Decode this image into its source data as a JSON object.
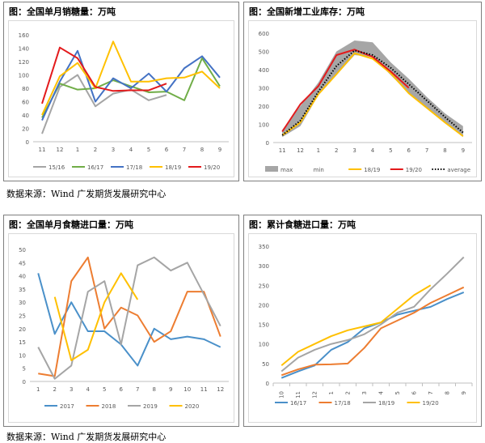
{
  "sources": {
    "top": "数据来源：Wind 广发期货发展研究中心",
    "bottom": "数据来源：Wind 广发期货发展研究中心"
  },
  "chart_data": [
    {
      "type": "line",
      "title": "图：全国单月销糖量：万吨",
      "categories": [
        "11",
        "12",
        "1",
        "2",
        "3",
        "4",
        "5",
        "6",
        "7",
        "8",
        "9"
      ],
      "ylim": [
        0,
        160
      ],
      "yticks": [
        0,
        20,
        40,
        60,
        80,
        100,
        120,
        140,
        160
      ],
      "legend_position": "bottom",
      "series": [
        {
          "name": "15/16",
          "color": "#a5a5a5",
          "values": [
            12,
            82,
            100,
            53,
            72,
            78,
            62,
            70,
            null,
            null,
            null
          ]
        },
        {
          "name": "16/17",
          "color": "#70ad47",
          "values": [
            36,
            87,
            78,
            80,
            92,
            83,
            74,
            75,
            62,
            125,
            83
          ]
        },
        {
          "name": "17/18",
          "color": "#4472c4",
          "values": [
            32,
            90,
            136,
            60,
            95,
            80,
            102,
            75,
            110,
            128,
            96
          ]
        },
        {
          "name": "18/19",
          "color": "#ffc000",
          "values": [
            40,
            98,
            118,
            80,
            150,
            90,
            90,
            95,
            96,
            105,
            80
          ]
        },
        {
          "name": "19/20",
          "color": "#e31a1c",
          "values": [
            57,
            141,
            125,
            82,
            76,
            77,
            77,
            87,
            null,
            null,
            null
          ]
        }
      ]
    },
    {
      "type": "area",
      "title": "图：全国新增工业库存：万吨",
      "categories": [
        "11",
        "12",
        "1",
        "2",
        "3",
        "4",
        "5",
        "6",
        "7",
        "8",
        "9"
      ],
      "ylim": [
        0,
        600
      ],
      "yticks": [
        0,
        100,
        200,
        300,
        400,
        500,
        600
      ],
      "legend_position": "bottom",
      "band": {
        "max_name": "max",
        "min_name": "min",
        "color": "#a6a6a6",
        "max": [
          70,
          200,
          330,
          500,
          560,
          550,
          440,
          350,
          250,
          160,
          90
        ],
        "min": [
          30,
          90,
          260,
          370,
          480,
          470,
          370,
          270,
          190,
          110,
          30
        ]
      },
      "series": [
        {
          "name": "18/19",
          "color": "#ffc000",
          "values": [
            40,
            110,
            265,
            375,
            490,
            460,
            380,
            270,
            190,
            110,
            35
          ]
        },
        {
          "name": "19/20",
          "color": "#e31a1c",
          "values": [
            60,
            210,
            310,
            480,
            510,
            470,
            390,
            300,
            null,
            null,
            null
          ]
        },
        {
          "name": "average",
          "color": "#000000",
          "dotted": true,
          "values": [
            40,
            120,
            280,
            420,
            505,
            480,
            410,
            320,
            230,
            140,
            55
          ]
        }
      ]
    },
    {
      "type": "line",
      "title": "图：全国单月食糖进口量：万吨",
      "categories": [
        "1",
        "2",
        "3",
        "4",
        "5",
        "6",
        "7",
        "8",
        "9",
        "10",
        "11",
        "12"
      ],
      "ylim": [
        0,
        50
      ],
      "yticks": [
        0,
        5,
        10,
        15,
        20,
        25,
        30,
        35,
        40,
        45,
        50
      ],
      "legend_position": "bottom",
      "series": [
        {
          "name": "2017",
          "color": "#4a90c9",
          "values": [
            41,
            18,
            30,
            19,
            19,
            14,
            6,
            20,
            16,
            17,
            16,
            13
          ]
        },
        {
          "name": "2018",
          "color": "#ed7d31",
          "values": [
            3,
            2,
            38,
            47,
            20,
            28,
            25,
            15,
            19,
            34,
            34,
            17
          ]
        },
        {
          "name": "2019",
          "color": "#a5a5a5",
          "values": [
            13,
            1,
            6,
            34,
            38,
            14,
            44,
            47,
            42,
            45,
            33,
            21
          ]
        },
        {
          "name": "2020",
          "color": "#ffc000",
          "values": [
            null,
            32,
            8,
            12,
            30,
            41,
            31,
            null,
            null,
            null,
            null,
            null
          ]
        }
      ]
    },
    {
      "type": "line",
      "title": "图：累计食糖进口量：万吨",
      "categories": [
        "10",
        "11",
        "12",
        "1",
        "2",
        "3",
        "4",
        "5",
        "6",
        "7",
        "8",
        "9"
      ],
      "ylim": [
        0,
        350
      ],
      "yticks": [
        0,
        50,
        100,
        150,
        200,
        250,
        300,
        350
      ],
      "legend_position": "bottom",
      "series": [
        {
          "name": "16/17",
          "color": "#4a90c9",
          "values": [
            13,
            30,
            45,
            85,
            105,
            140,
            155,
            175,
            185,
            195,
            215,
            232
          ]
        },
        {
          "name": "17/18",
          "color": "#ed7d31",
          "values": [
            20,
            35,
            47,
            48,
            50,
            90,
            140,
            160,
            180,
            205,
            225,
            245
          ]
        },
        {
          "name": "18/19",
          "color": "#a5a5a5",
          "values": [
            30,
            65,
            85,
            100,
            110,
            125,
            150,
            180,
            195,
            240,
            280,
            322
          ]
        },
        {
          "name": "19/20",
          "color": "#ffc000",
          "values": [
            45,
            80,
            100,
            120,
            135,
            145,
            155,
            190,
            225,
            250,
            null,
            null
          ]
        }
      ]
    }
  ]
}
